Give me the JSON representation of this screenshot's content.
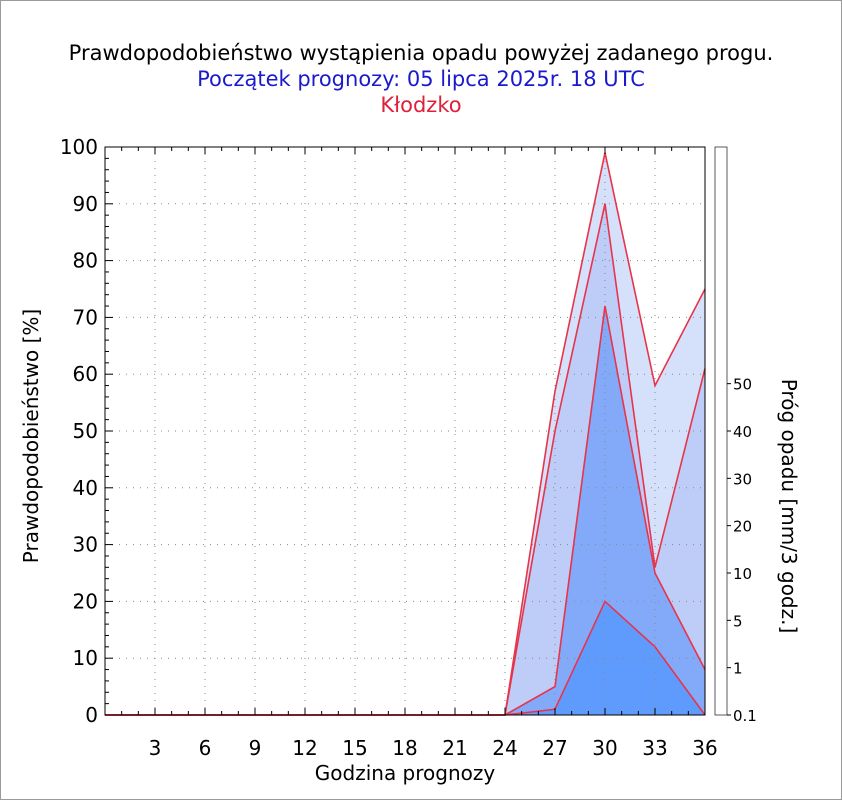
{
  "titles": {
    "main": "Prawdopodobieństwo wystąpienia opadu powyżej zadanego progu.",
    "forecast_start": "Początek prognozy: 05 lipca 2025r. 18 UTC",
    "location": "Kłodzko"
  },
  "colors": {
    "main_title": "#000000",
    "forecast_start": "#1a1acc",
    "location": "#e0203a",
    "line": "#e8344a",
    "scale": [
      "#e9eefe",
      "#d5e0fb",
      "#bdcdf8",
      "#a4bcf6",
      "#83aaf9",
      "#5f9bfd",
      "#3d8cff",
      "#2a9aff",
      "#1778f2",
      "#0e63da",
      "#0a4fc4",
      "#0a3aa8"
    ]
  },
  "chart_data": {
    "type": "area",
    "xlabel": "Godzina prognozy",
    "ylabel": "Prawdopodobieństwo [%]",
    "x": [
      0,
      3,
      6,
      9,
      12,
      15,
      18,
      21,
      24,
      27,
      30,
      33,
      36
    ],
    "xticks": [
      3,
      6,
      9,
      12,
      15,
      18,
      21,
      24,
      27,
      30,
      33,
      36
    ],
    "xlim": [
      0,
      36
    ],
    "ylim": [
      0,
      100
    ],
    "yticks": [
      0,
      10,
      20,
      30,
      40,
      50,
      60,
      70,
      80,
      90,
      100
    ],
    "grid": "dotted",
    "series": [
      {
        "threshold": 0.1,
        "values": [
          0,
          0,
          0,
          0,
          0,
          0,
          0,
          0,
          0,
          57,
          99,
          58,
          75
        ]
      },
      {
        "threshold": 1,
        "values": [
          0,
          0,
          0,
          0,
          0,
          0,
          0,
          0,
          0,
          50,
          90,
          26,
          61
        ]
      },
      {
        "threshold": 5,
        "values": [
          0,
          0,
          0,
          0,
          0,
          0,
          0,
          0,
          0,
          5,
          72,
          25,
          8
        ]
      },
      {
        "threshold": 10,
        "values": [
          0,
          0,
          0,
          0,
          0,
          0,
          0,
          0,
          0,
          1,
          20,
          12,
          0
        ]
      }
    ],
    "colorbar": {
      "label": "Próg opadu [mm/3 godz.]",
      "labels": [
        "0.1",
        "1",
        "5",
        "10",
        "20",
        "30",
        "40",
        "50"
      ],
      "label_values": [
        0.1,
        1,
        5,
        10,
        20,
        30,
        40,
        50
      ]
    }
  }
}
